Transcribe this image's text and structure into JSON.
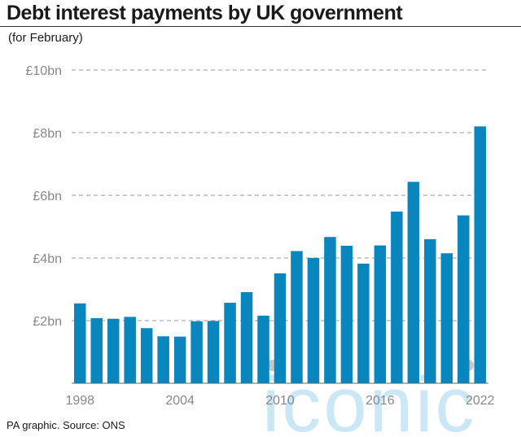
{
  "title": "Debt interest payments by UK government",
  "subtitle": "(for February)",
  "source": "PA graphic. Source: ONS",
  "watermark": "iconic",
  "colors": {
    "bar": "#0a86bf",
    "grid": "#9a9a9a",
    "axis_text": "#888888",
    "watermark": "#b9dff2"
  },
  "chart_data": {
    "type": "bar",
    "title": "Debt interest payments by UK government",
    "subtitle": "(for February)",
    "xlabel": "",
    "ylabel": "",
    "categories": [
      1998,
      1999,
      2000,
      2001,
      2002,
      2003,
      2004,
      2005,
      2006,
      2007,
      2008,
      2009,
      2010,
      2011,
      2012,
      2013,
      2014,
      2015,
      2016,
      2017,
      2018,
      2019,
      2020,
      2021,
      2022
    ],
    "values": [
      2.55,
      2.08,
      2.06,
      2.12,
      1.76,
      1.5,
      1.49,
      1.98,
      1.99,
      2.57,
      2.91,
      2.16,
      3.51,
      4.22,
      4.0,
      4.67,
      4.39,
      3.82,
      4.4,
      5.48,
      6.43,
      4.6,
      4.15,
      5.36,
      8.2
    ],
    "x_tick_labels": [
      "1998",
      "2004",
      "2010",
      "2016",
      "2022"
    ],
    "y_ticks": [
      {
        "value": 2,
        "label": "£2bn"
      },
      {
        "value": 4,
        "label": "£4bn"
      },
      {
        "value": 6,
        "label": "£6bn"
      },
      {
        "value": 8,
        "label": "£8bn"
      },
      {
        "value": 10,
        "label": "£10bn"
      }
    ],
    "ylim": [
      0,
      10
    ],
    "grid": true,
    "legend": "none"
  }
}
